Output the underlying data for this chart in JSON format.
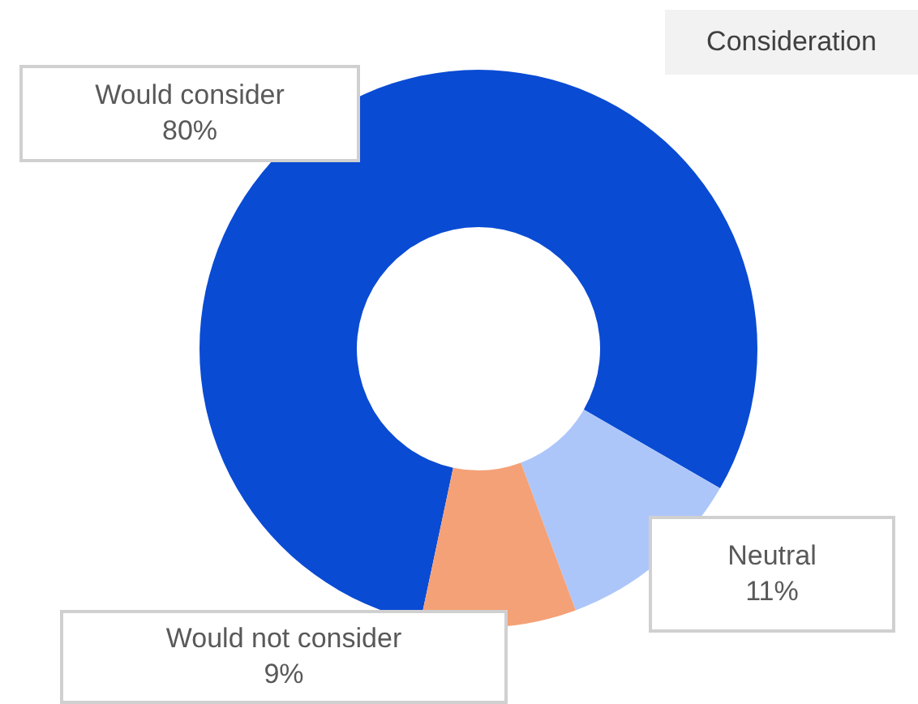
{
  "chart_data": {
    "type": "donut",
    "title": "Consideration",
    "categories": [
      "Would consider",
      "Neutral",
      "Would not consider"
    ],
    "values": [
      80,
      11,
      9
    ],
    "colors": [
      "#0a4bd3",
      "#adc6fa",
      "#f4a177"
    ],
    "value_labels": [
      "80%",
      "11%",
      "9%"
    ]
  }
}
